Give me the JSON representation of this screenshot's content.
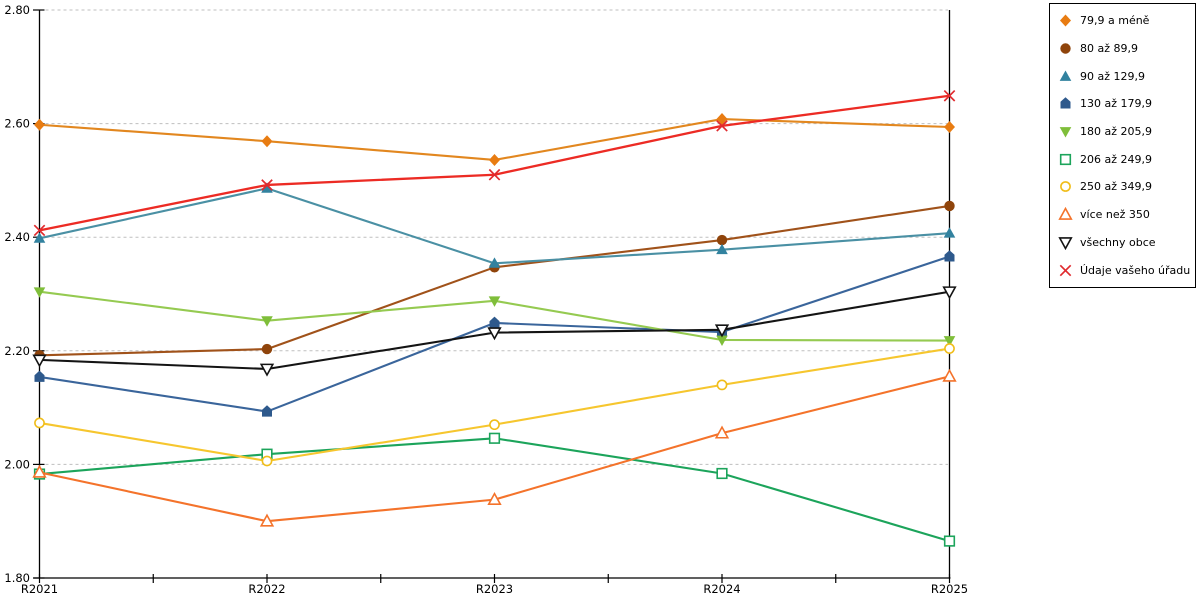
{
  "chart_data": {
    "type": "line",
    "title": "",
    "xlabel": "",
    "ylabel": "",
    "categories": [
      "R2021",
      "R2022",
      "R2023",
      "R2024",
      "R2025"
    ],
    "ylim": [
      1.8,
      2.8
    ],
    "ytick_step": 0.2,
    "ytick_labels": [
      "1.80",
      "2.00",
      "2.20",
      "2.40",
      "2.60",
      "2.80"
    ],
    "grid": "horizontal-dashed",
    "grid_color": "#bfbfbf",
    "axis_color": "#000000",
    "legend_position": "right-box",
    "series": [
      {
        "name": "79,9 a méně",
        "marker": "diamond",
        "color": "#e2871f",
        "marker_color": "#e87c12",
        "values": [
          2.598,
          2.569,
          2.536,
          2.608,
          2.594
        ]
      },
      {
        "name": "80 až 89,9",
        "marker": "circle",
        "color": "#a0521a",
        "marker_color": "#8f440b",
        "values": [
          2.192,
          2.203,
          2.347,
          2.395,
          2.455
        ]
      },
      {
        "name": "90 až 129,9",
        "marker": "triangle",
        "color": "#4a90a4",
        "marker_color": "#32829f",
        "values": [
          2.398,
          2.486,
          2.354,
          2.378,
          2.407
        ]
      },
      {
        "name": "130 až 179,9",
        "marker": "pentagon",
        "color": "#3a659b",
        "marker_color": "#2e598c",
        "values": [
          2.154,
          2.093,
          2.249,
          2.233,
          2.366
        ]
      },
      {
        "name": "180 až 205,9",
        "marker": "triangle-down",
        "color": "#95ca51",
        "marker_color": "#7fbe3a",
        "values": [
          2.304,
          2.253,
          2.288,
          2.219,
          2.218
        ]
      },
      {
        "name": "206 až 249,9",
        "marker": "square-open",
        "color": "#1ca45b",
        "marker_color": "#1ca45b",
        "values": [
          1.983,
          2.018,
          2.046,
          1.984,
          1.865
        ]
      },
      {
        "name": "250 až 349,9",
        "marker": "circle-open",
        "color": "#f6c62e",
        "marker_color": "#f0bd1a",
        "values": [
          2.073,
          2.006,
          2.07,
          2.14,
          2.204
        ]
      },
      {
        "name": "více než 350",
        "marker": "triangle-open",
        "color": "#f4732b",
        "marker_color": "#f4732b",
        "values": [
          1.986,
          1.9,
          1.938,
          2.055,
          2.155
        ]
      },
      {
        "name": "všechny obce",
        "marker": "triangle-down-open",
        "color": "#141414",
        "marker_color": "#141414",
        "values": [
          2.184,
          2.168,
          2.232,
          2.237,
          2.304
        ]
      },
      {
        "name": "Údaje vašeho úřadu",
        "marker": "x",
        "color": "#ec2b24",
        "marker_color": "#e02a2e",
        "values": [
          2.412,
          2.492,
          2.51,
          2.596,
          2.649
        ]
      }
    ]
  }
}
